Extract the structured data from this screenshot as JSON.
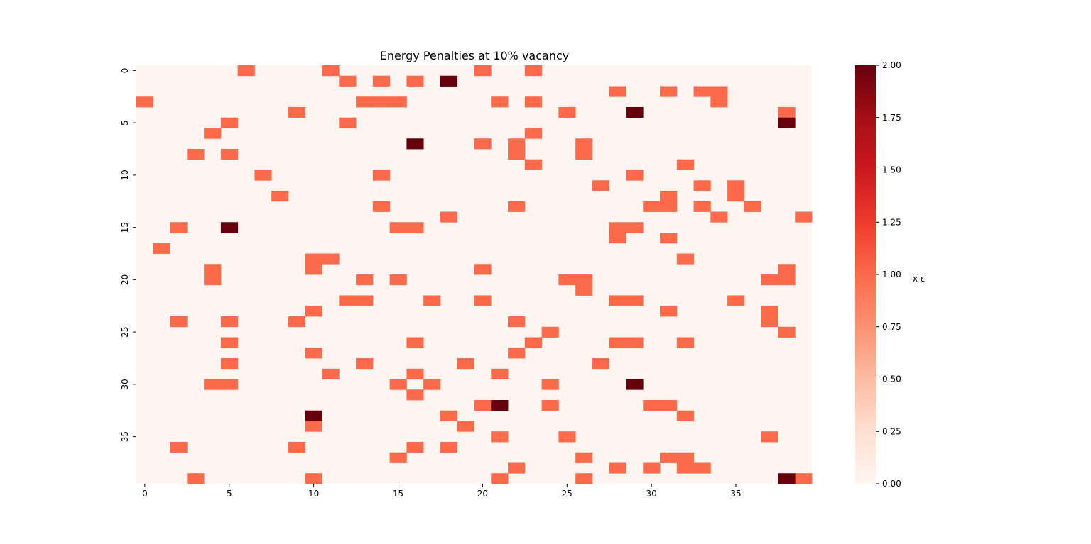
{
  "chart_data": {
    "type": "heatmap",
    "title": "Energy Penalties at 10% vacancy",
    "xlabel": "",
    "ylabel": "",
    "rows": 40,
    "cols": 40,
    "x_ticks": [
      0,
      5,
      10,
      15,
      20,
      25,
      30,
      35
    ],
    "y_ticks": [
      0,
      5,
      10,
      15,
      20,
      25,
      30,
      35
    ],
    "colormap": "Reds",
    "vmin": 0,
    "vmax": 2,
    "colorbar": {
      "label": "x ε",
      "ticks": [
        "0.00",
        "0.25",
        "0.50",
        "0.75",
        "1.00",
        "1.25",
        "1.50",
        "1.75",
        "2.00"
      ]
    },
    "background_value": 0,
    "cells": [
      {
        "row": 0,
        "cols": [
          6,
          11,
          20,
          23
        ],
        "value": 1
      },
      {
        "row": 1,
        "cols": [
          12,
          14,
          16
        ],
        "value": 1
      },
      {
        "row": 1,
        "cols": [
          18
        ],
        "value": 2
      },
      {
        "row": 2,
        "cols": [
          28,
          31,
          33,
          34
        ],
        "value": 1
      },
      {
        "row": 3,
        "cols": [
          0,
          13,
          14,
          15,
          21,
          23,
          34
        ],
        "value": 1
      },
      {
        "row": 4,
        "cols": [
          9,
          25,
          38
        ],
        "value": 1
      },
      {
        "row": 4,
        "cols": [
          29
        ],
        "value": 2
      },
      {
        "row": 5,
        "cols": [
          5,
          12
        ],
        "value": 1
      },
      {
        "row": 5,
        "cols": [
          38
        ],
        "value": 2
      },
      {
        "row": 6,
        "cols": [
          4,
          23
        ],
        "value": 1
      },
      {
        "row": 7,
        "cols": [
          20,
          22,
          26
        ],
        "value": 1
      },
      {
        "row": 7,
        "cols": [
          16
        ],
        "value": 2
      },
      {
        "row": 8,
        "cols": [
          3,
          5,
          22,
          26
        ],
        "value": 1
      },
      {
        "row": 9,
        "cols": [
          23,
          32
        ],
        "value": 1
      },
      {
        "row": 10,
        "cols": [
          7,
          14,
          29
        ],
        "value": 1
      },
      {
        "row": 11,
        "cols": [
          27,
          33,
          35
        ],
        "value": 1
      },
      {
        "row": 12,
        "cols": [
          8,
          31,
          35
        ],
        "value": 1
      },
      {
        "row": 13,
        "cols": [
          14,
          22,
          30,
          31,
          33,
          36
        ],
        "value": 1
      },
      {
        "row": 14,
        "cols": [
          18,
          34,
          39
        ],
        "value": 1
      },
      {
        "row": 15,
        "cols": [
          2,
          15,
          16,
          28,
          29
        ],
        "value": 1
      },
      {
        "row": 15,
        "cols": [
          5
        ],
        "value": 2
      },
      {
        "row": 16,
        "cols": [
          28,
          31
        ],
        "value": 1
      },
      {
        "row": 17,
        "cols": [
          1
        ],
        "value": 1
      },
      {
        "row": 18,
        "cols": [
          10,
          11,
          32
        ],
        "value": 1
      },
      {
        "row": 19,
        "cols": [
          4,
          10,
          20,
          38
        ],
        "value": 1
      },
      {
        "row": 20,
        "cols": [
          4,
          13,
          15,
          25,
          26,
          37,
          38
        ],
        "value": 1
      },
      {
        "row": 21,
        "cols": [
          26
        ],
        "value": 1
      },
      {
        "row": 22,
        "cols": [
          12,
          13,
          17,
          20,
          28,
          29,
          35
        ],
        "value": 1
      },
      {
        "row": 23,
        "cols": [
          10,
          31,
          37
        ],
        "value": 1
      },
      {
        "row": 24,
        "cols": [
          2,
          5,
          9,
          22,
          37
        ],
        "value": 1
      },
      {
        "row": 25,
        "cols": [
          24,
          38
        ],
        "value": 1
      },
      {
        "row": 26,
        "cols": [
          5,
          16,
          23,
          28,
          29,
          32
        ],
        "value": 1
      },
      {
        "row": 27,
        "cols": [
          10,
          22
        ],
        "value": 1
      },
      {
        "row": 28,
        "cols": [
          5,
          13,
          19,
          27
        ],
        "value": 1
      },
      {
        "row": 29,
        "cols": [
          11,
          16,
          21
        ],
        "value": 1
      },
      {
        "row": 30,
        "cols": [
          4,
          5,
          15,
          17,
          24
        ],
        "value": 1
      },
      {
        "row": 30,
        "cols": [
          29
        ],
        "value": 2
      },
      {
        "row": 31,
        "cols": [
          16
        ],
        "value": 1
      },
      {
        "row": 32,
        "cols": [
          20,
          24,
          30,
          31
        ],
        "value": 1
      },
      {
        "row": 32,
        "cols": [
          21
        ],
        "value": 2
      },
      {
        "row": 33,
        "cols": [
          18,
          32
        ],
        "value": 1
      },
      {
        "row": 33,
        "cols": [
          10
        ],
        "value": 2
      },
      {
        "row": 34,
        "cols": [
          10,
          19
        ],
        "value": 1
      },
      {
        "row": 35,
        "cols": [
          21,
          25,
          37
        ],
        "value": 1
      },
      {
        "row": 36,
        "cols": [
          2,
          9,
          16,
          18
        ],
        "value": 1
      },
      {
        "row": 37,
        "cols": [
          15,
          26,
          31,
          32
        ],
        "value": 1
      },
      {
        "row": 38,
        "cols": [
          22,
          28,
          30,
          32,
          33
        ],
        "value": 1
      },
      {
        "row": 39,
        "cols": [
          3,
          10,
          21,
          26,
          39
        ],
        "value": 1
      },
      {
        "row": 39,
        "cols": [
          38
        ],
        "value": 2
      }
    ]
  }
}
